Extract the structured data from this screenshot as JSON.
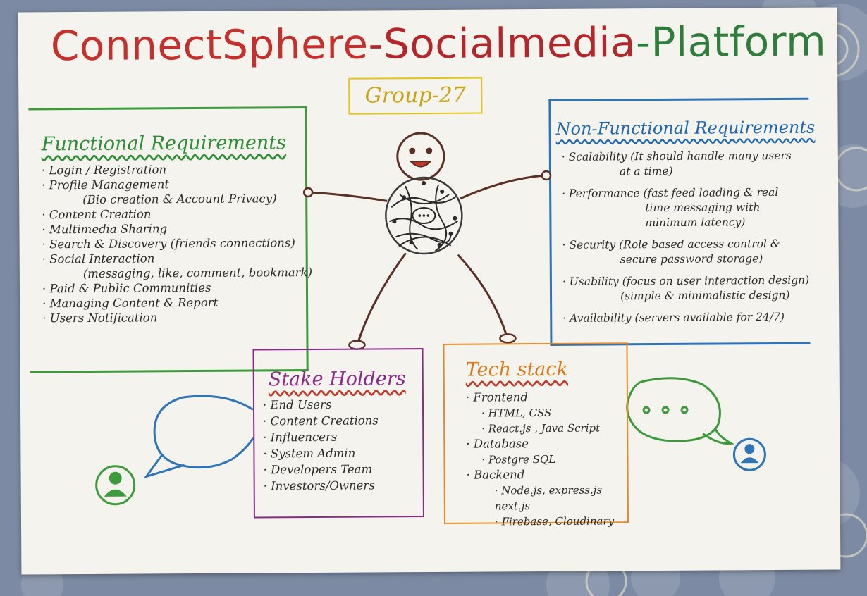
{
  "title": {
    "part1": "ConnectSphere",
    "part2": "-Socialmedia",
    "part3": "-Platform"
  },
  "group": "Group-27",
  "functional": {
    "heading": "Functional Requirements",
    "items": [
      "· Login / Registration",
      "· Profile Management",
      "(Bio creation & Account Privacy)",
      "· Content Creation",
      "· Multimedia Sharing",
      "· Search & Discovery (friends connections)",
      "· Social Interaction",
      "(messaging, like, comment, bookmark)",
      "· Paid & Public Communities",
      "· Managing Content & Report",
      "· Users Notification"
    ]
  },
  "non_functional": {
    "heading": "Non-Functional Requirements",
    "items": [
      "· Scalability (It should handle many users",
      "at a time)",
      "· Performance (fast feed loading & real",
      "time messaging with",
      "minimum latency)",
      "· Security (Role based access control &",
      "secure password storage)",
      "· Usability (focus on user interaction design)",
      "(simple & minimalistic design)",
      "· Availability (servers available for 24/7)"
    ]
  },
  "stakeholders": {
    "heading": "Stake Holders",
    "items": [
      "· End Users",
      "· Content Creations",
      "· Influencers",
      "· System Admin",
      "· Developers Team",
      "· Investors/Owners"
    ]
  },
  "tech_stack": {
    "heading": "Tech stack",
    "frontend": "· Frontend",
    "frontend_items": [
      "· HTML, CSS",
      "· React.js , Java Script"
    ],
    "database": "· Database",
    "database_items": [
      "· Postgre SQL"
    ],
    "backend": "· Backend",
    "backend_items": [
      "· Node.js, express.js",
      "next.js",
      "· Firebase, Cloudinary"
    ]
  },
  "colors": {
    "title_red": "#c5302c",
    "title_green": "#2f7d3a",
    "group_yellow": "#e2c51a",
    "functional_green": "#3d9a3b",
    "non_functional_blue": "#2d74b8",
    "stakeholders_purple": "#8a2a87",
    "tech_orange": "#e48a2a",
    "figure_brown": "#5a2f25"
  },
  "icons": [
    "smiley-face-icon",
    "globe-network-icon",
    "chat-bubble-icon",
    "user-avatar-icon"
  ]
}
